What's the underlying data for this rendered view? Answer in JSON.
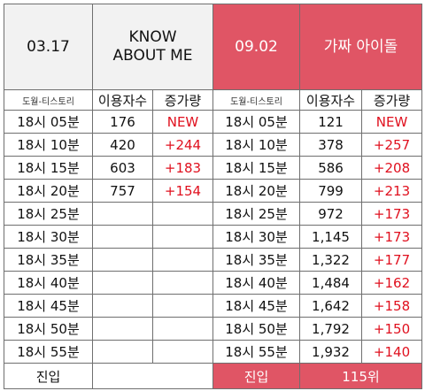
{
  "left": {
    "date": "03.17",
    "title_line1": "KNOW",
    "title_line2": "ABOUT ME",
    "source_label": "도월-티스토리",
    "col_users": "이용자수",
    "col_increase": "증가량",
    "footer_label": "진입",
    "times": [
      "18시 05분",
      "18시 10분",
      "18시 15분",
      "18시 20분",
      "18시 25분",
      "18시 30분",
      "18시 35분",
      "18시 40분",
      "18시 45분",
      "18시 50분",
      "18시 55분"
    ],
    "users": [
      "176",
      "420",
      "603",
      "757"
    ],
    "increase": [
      "NEW",
      "+244",
      "+183",
      "+154"
    ]
  },
  "right": {
    "date": "09.02",
    "title": "가짜 아이돌",
    "source_label": "도월-티스토리",
    "col_users": "이용자수",
    "col_increase": "증가량",
    "footer_label": "진입",
    "footer_rank": "115위",
    "times": [
      "18시 05분",
      "18시 10분",
      "18시 15분",
      "18시 20분",
      "18시 25분",
      "18시 30분",
      "18시 35분",
      "18시 40분",
      "18시 45분",
      "18시 50분",
      "18시 55분"
    ],
    "users": [
      "121",
      "378",
      "586",
      "799",
      "972",
      "1,145",
      "1,322",
      "1,484",
      "1,642",
      "1,792",
      "1,932"
    ],
    "increase": [
      "NEW",
      "+257",
      "+208",
      "+213",
      "+173",
      "+173",
      "+177",
      "+162",
      "+158",
      "+150",
      "+140"
    ]
  },
  "colors": {
    "header_red": "#e05565",
    "increase_red": "#e0101e",
    "header_gray": "#f2f2f2"
  }
}
